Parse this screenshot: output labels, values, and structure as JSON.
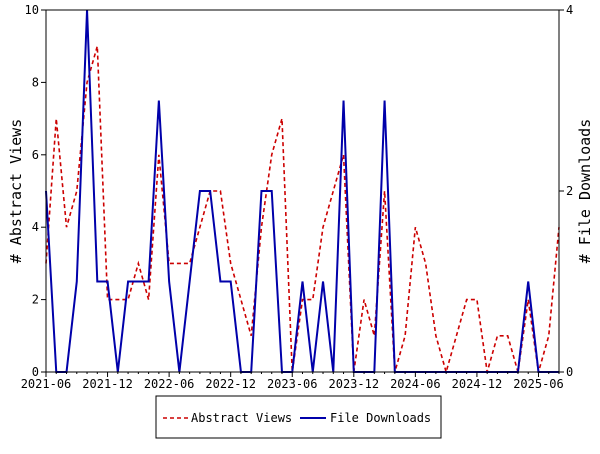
{
  "chart_data": {
    "type": "line",
    "title": "",
    "x_tick_labels": [
      "2021-06",
      "2021-12",
      "2022-06",
      "2022-12",
      "2023-06",
      "2023-12",
      "2024-06",
      "2024-12",
      "2025-06"
    ],
    "y_left": {
      "label": "# Abstract Views",
      "ylim": [
        0,
        10
      ],
      "ticks": [
        "0",
        "2",
        "4",
        "6",
        "8",
        "10"
      ]
    },
    "y_right": {
      "label": "# File Downloads",
      "ylim": [
        0,
        4
      ],
      "ticks": [
        "0",
        "2",
        "4"
      ]
    },
    "grid": false,
    "legend_position": "bottom",
    "series": [
      {
        "name": "Abstract Views",
        "axis": "left",
        "color": "#cc0000",
        "style": "dashed",
        "x": [
          "2021-06",
          "2021-07",
          "2021-08",
          "2021-09",
          "2021-10",
          "2021-11",
          "2021-12",
          "2022-01",
          "2022-02",
          "2022-03",
          "2022-04",
          "2022-05",
          "2022-06",
          "2022-07",
          "2022-08",
          "2022-09",
          "2022-10",
          "2022-11",
          "2022-12",
          "2023-01",
          "2023-02",
          "2023-03",
          "2023-04",
          "2023-05",
          "2023-06",
          "2023-07",
          "2023-08",
          "2023-09",
          "2023-10",
          "2023-11",
          "2023-12",
          "2024-01",
          "2024-02",
          "2024-03",
          "2024-04",
          "2024-05",
          "2024-06",
          "2024-07",
          "2024-08",
          "2024-09",
          "2024-10",
          "2024-11",
          "2024-12",
          "2025-01",
          "2025-02",
          "2025-03",
          "2025-04",
          "2025-05",
          "2025-06",
          "2025-07",
          "2025-08"
        ],
        "values": [
          3,
          7,
          4,
          5,
          8,
          9,
          2,
          2,
          2,
          3,
          2,
          6,
          3,
          3,
          3,
          4,
          5,
          5,
          3,
          2,
          1,
          4,
          6,
          7,
          0,
          2,
          2,
          4,
          5,
          6,
          0,
          2,
          1,
          5,
          0,
          1,
          4,
          3,
          1,
          0,
          1,
          2,
          2,
          0,
          1,
          1,
          0,
          2,
          0,
          1,
          4
        ]
      },
      {
        "name": "File Downloads",
        "axis": "right",
        "color": "#0000aa",
        "style": "solid",
        "x": [
          "2021-06",
          "2021-07",
          "2021-08",
          "2021-09",
          "2021-10",
          "2021-11",
          "2021-12",
          "2022-01",
          "2022-02",
          "2022-03",
          "2022-04",
          "2022-05",
          "2022-06",
          "2022-07",
          "2022-08",
          "2022-09",
          "2022-10",
          "2022-11",
          "2022-12",
          "2023-01",
          "2023-02",
          "2023-03",
          "2023-04",
          "2023-05",
          "2023-06",
          "2023-07",
          "2023-08",
          "2023-09",
          "2023-10",
          "2023-11",
          "2023-12",
          "2024-01",
          "2024-02",
          "2024-03",
          "2024-04",
          "2024-05",
          "2024-06",
          "2024-07",
          "2024-08",
          "2024-09",
          "2024-10",
          "2024-11",
          "2024-12",
          "2025-01",
          "2025-02",
          "2025-03",
          "2025-04",
          "2025-05",
          "2025-06",
          "2025-07",
          "2025-08"
        ],
        "values": [
          2,
          0,
          0,
          1,
          4,
          1,
          1,
          0,
          1,
          1,
          1,
          3,
          1,
          0,
          1,
          2,
          2,
          1,
          1,
          0,
          0,
          2,
          2,
          0,
          0,
          1,
          0,
          1,
          0,
          3,
          0,
          0,
          0,
          3,
          0,
          0,
          0,
          0,
          0,
          0,
          0,
          0,
          0,
          0,
          0,
          0,
          0,
          1,
          0,
          0,
          0
        ]
      }
    ]
  }
}
